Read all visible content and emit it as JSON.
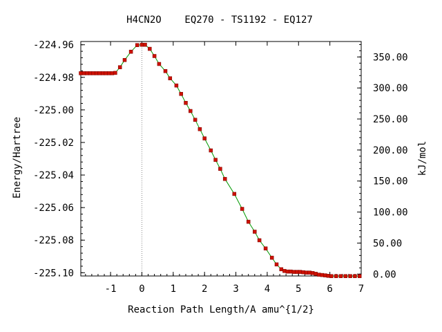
{
  "chart_data": {
    "type": "line",
    "title": "H4CN2O    EQ270 - TS1192 - EQ127",
    "xlabel": "Reaction Path Length/A amu^{1/2}",
    "ylabel": "Energy/Hartree",
    "y2label": "kJ/mol",
    "xlim": [
      -1.95,
      7.0
    ],
    "ylim": [
      -225.102,
      -224.958
    ],
    "y2lim": [
      -3.05,
      374.9
    ],
    "x_ticks": [
      -1,
      0,
      1,
      2,
      3,
      4,
      5,
      6,
      7
    ],
    "x_tick_labels": [
      "-1",
      "0",
      "1",
      "2",
      "3",
      "4",
      "5",
      "6",
      "7"
    ],
    "y_ticks": [
      -224.96,
      -224.98,
      -225.0,
      -225.02,
      -225.04,
      -225.06,
      -225.08,
      -225.1
    ],
    "y_tick_labels": [
      "-224.96",
      "-224.98",
      "-225.00",
      "-225.02",
      "-225.04",
      "-225.06",
      "-225.08",
      "-225.10"
    ],
    "y2_ticks": [
      350,
      300,
      250,
      200,
      150,
      100,
      50,
      0
    ],
    "y2_tick_labels": [
      "350.00",
      "300.00",
      "250.00",
      "200.00",
      "150.00",
      "100.00",
      "50.00",
      "0.00"
    ],
    "ts_x": 0,
    "series": [
      {
        "line_color": "#009900",
        "marker_color": "#cc1100",
        "x": [
          -1.95,
          -1.85,
          -1.75,
          -1.65,
          -1.55,
          -1.45,
          -1.35,
          -1.25,
          -1.15,
          -1.05,
          -0.95,
          -0.85,
          -0.7,
          -0.55,
          -0.35,
          -0.15,
          0.0,
          0.1,
          0.25,
          0.4,
          0.55,
          0.75,
          0.9,
          1.1,
          1.25,
          1.4,
          1.55,
          1.7,
          1.85,
          2.0,
          2.2,
          2.35,
          2.5,
          2.65,
          2.95,
          3.2,
          3.4,
          3.6,
          3.75,
          3.95,
          4.15,
          4.3,
          4.45,
          4.55,
          4.65,
          4.75,
          4.85,
          4.95,
          5.05,
          5.15,
          5.25,
          5.35,
          5.45,
          5.55,
          5.65,
          5.75,
          5.85,
          5.95,
          6.05,
          6.2,
          6.35,
          6.5,
          6.65,
          6.8,
          6.95
        ],
        "y": [
          -224.9775,
          -224.9775,
          -224.9775,
          -224.9775,
          -224.9775,
          -224.9775,
          -224.9775,
          -224.9775,
          -224.9775,
          -224.9775,
          -224.9775,
          -224.9773,
          -224.9738,
          -224.9694,
          -224.9643,
          -224.9602,
          -224.96,
          -224.96,
          -224.9625,
          -224.9669,
          -224.9718,
          -224.9762,
          -224.9806,
          -224.985,
          -224.9902,
          -224.9957,
          -225.0007,
          -225.0061,
          -225.0118,
          -225.0175,
          -225.0249,
          -225.0307,
          -225.0362,
          -225.0424,
          -225.0516,
          -225.0608,
          -225.0687,
          -225.0748,
          -225.0801,
          -225.0851,
          -225.0908,
          -225.0949,
          -225.0979,
          -225.0989,
          -225.0993,
          -225.0993,
          -225.0995,
          -225.0995,
          -225.0995,
          -225.0997,
          -225.0999,
          -225.0999,
          -225.1002,
          -225.1007,
          -225.1012,
          -225.1014,
          -225.1016,
          -225.1019,
          -225.1021,
          -225.1021,
          -225.1021,
          -225.1021,
          -225.1021,
          -225.1021,
          -225.1021
        ]
      }
    ]
  }
}
